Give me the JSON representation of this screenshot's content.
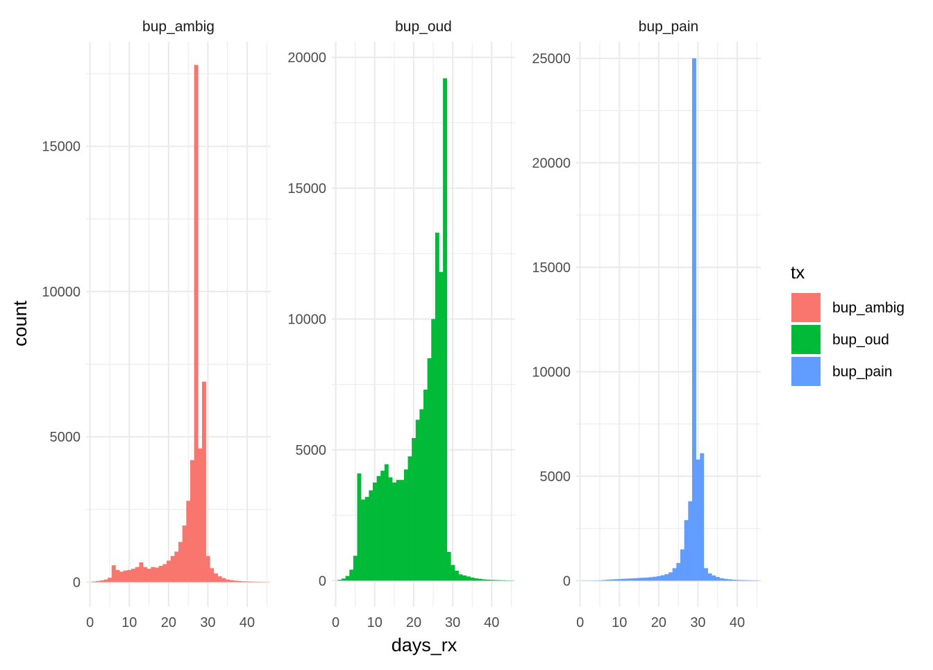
{
  "chart_data": {
    "type": "bar",
    "subtype": "faceted-histogram",
    "xlabel": "days_rx",
    "ylabel": "count",
    "legend": {
      "title": "tx",
      "placement": "right",
      "entries": [
        {
          "label": "bup_ambig",
          "color": "#F8766D"
        },
        {
          "label": "bup_oud",
          "color": "#00BA38"
        },
        {
          "label": "bup_pain",
          "color": "#619CFF"
        }
      ]
    },
    "grid": true,
    "x_ticks": [
      0,
      10,
      20,
      30,
      40
    ],
    "x_tick_labels": [
      "0",
      "10",
      "20",
      "30",
      "40"
    ],
    "xlim": [
      -1,
      46
    ],
    "bin_width": 1,
    "bin_centers": [
      1,
      2,
      3,
      4,
      5,
      6,
      7,
      8,
      9,
      10,
      11,
      12,
      13,
      14,
      15,
      16,
      17,
      18,
      19,
      20,
      21,
      22,
      23,
      24,
      25,
      26,
      27,
      28,
      29,
      30,
      31,
      32,
      33,
      34,
      35,
      36,
      37,
      38,
      39,
      40,
      41,
      42,
      43,
      44,
      45
    ],
    "facets": [
      {
        "name": "bup_ambig",
        "color": "#F8766D",
        "ylim": [
          -850,
          18600
        ],
        "y_ticks": [
          0,
          5000,
          10000,
          15000
        ],
        "y_tick_labels": [
          "0",
          "5000",
          "10000",
          "15000"
        ],
        "values": [
          20,
          40,
          60,
          90,
          150,
          580,
          420,
          360,
          400,
          420,
          460,
          520,
          680,
          520,
          460,
          520,
          500,
          560,
          620,
          740,
          900,
          1050,
          1380,
          1950,
          2800,
          4200,
          17800,
          4600,
          6900,
          900,
          480,
          300,
          200,
          140,
          90,
          70,
          50,
          40,
          30,
          25,
          20,
          15,
          10,
          8,
          5
        ]
      },
      {
        "name": "bup_oud",
        "color": "#00BA38",
        "ylim": [
          -1000,
          20600
        ],
        "y_ticks": [
          0,
          5000,
          10000,
          15000,
          20000
        ],
        "y_tick_labels": [
          "0",
          "5000",
          "10000",
          "15000",
          "20000"
        ],
        "values": [
          30,
          80,
          180,
          420,
          950,
          4100,
          3100,
          3200,
          3450,
          3750,
          4000,
          4200,
          4450,
          3950,
          3750,
          3850,
          3850,
          4250,
          4750,
          5450,
          6150,
          6550,
          7300,
          8500,
          10000,
          13300,
          11800,
          19200,
          1100,
          600,
          380,
          240,
          200,
          160,
          120,
          90,
          70,
          50,
          40,
          30,
          25,
          20,
          15,
          10,
          8
        ]
      },
      {
        "name": "bup_pain",
        "color": "#619CFF",
        "ylim": [
          -1250,
          25800
        ],
        "y_ticks": [
          0,
          5000,
          10000,
          15000,
          20000,
          25000
        ],
        "y_tick_labels": [
          "0",
          "5000",
          "10000",
          "15000",
          "20000",
          "25000"
        ],
        "values": [
          5,
          5,
          5,
          10,
          15,
          30,
          50,
          60,
          70,
          80,
          90,
          100,
          110,
          120,
          130,
          140,
          150,
          170,
          190,
          220,
          260,
          310,
          400,
          600,
          850,
          1500,
          2900,
          3800,
          25000,
          5800,
          6100,
          600,
          350,
          250,
          180,
          120,
          90,
          70,
          50,
          40,
          30,
          25,
          20,
          15,
          10
        ]
      }
    ]
  }
}
